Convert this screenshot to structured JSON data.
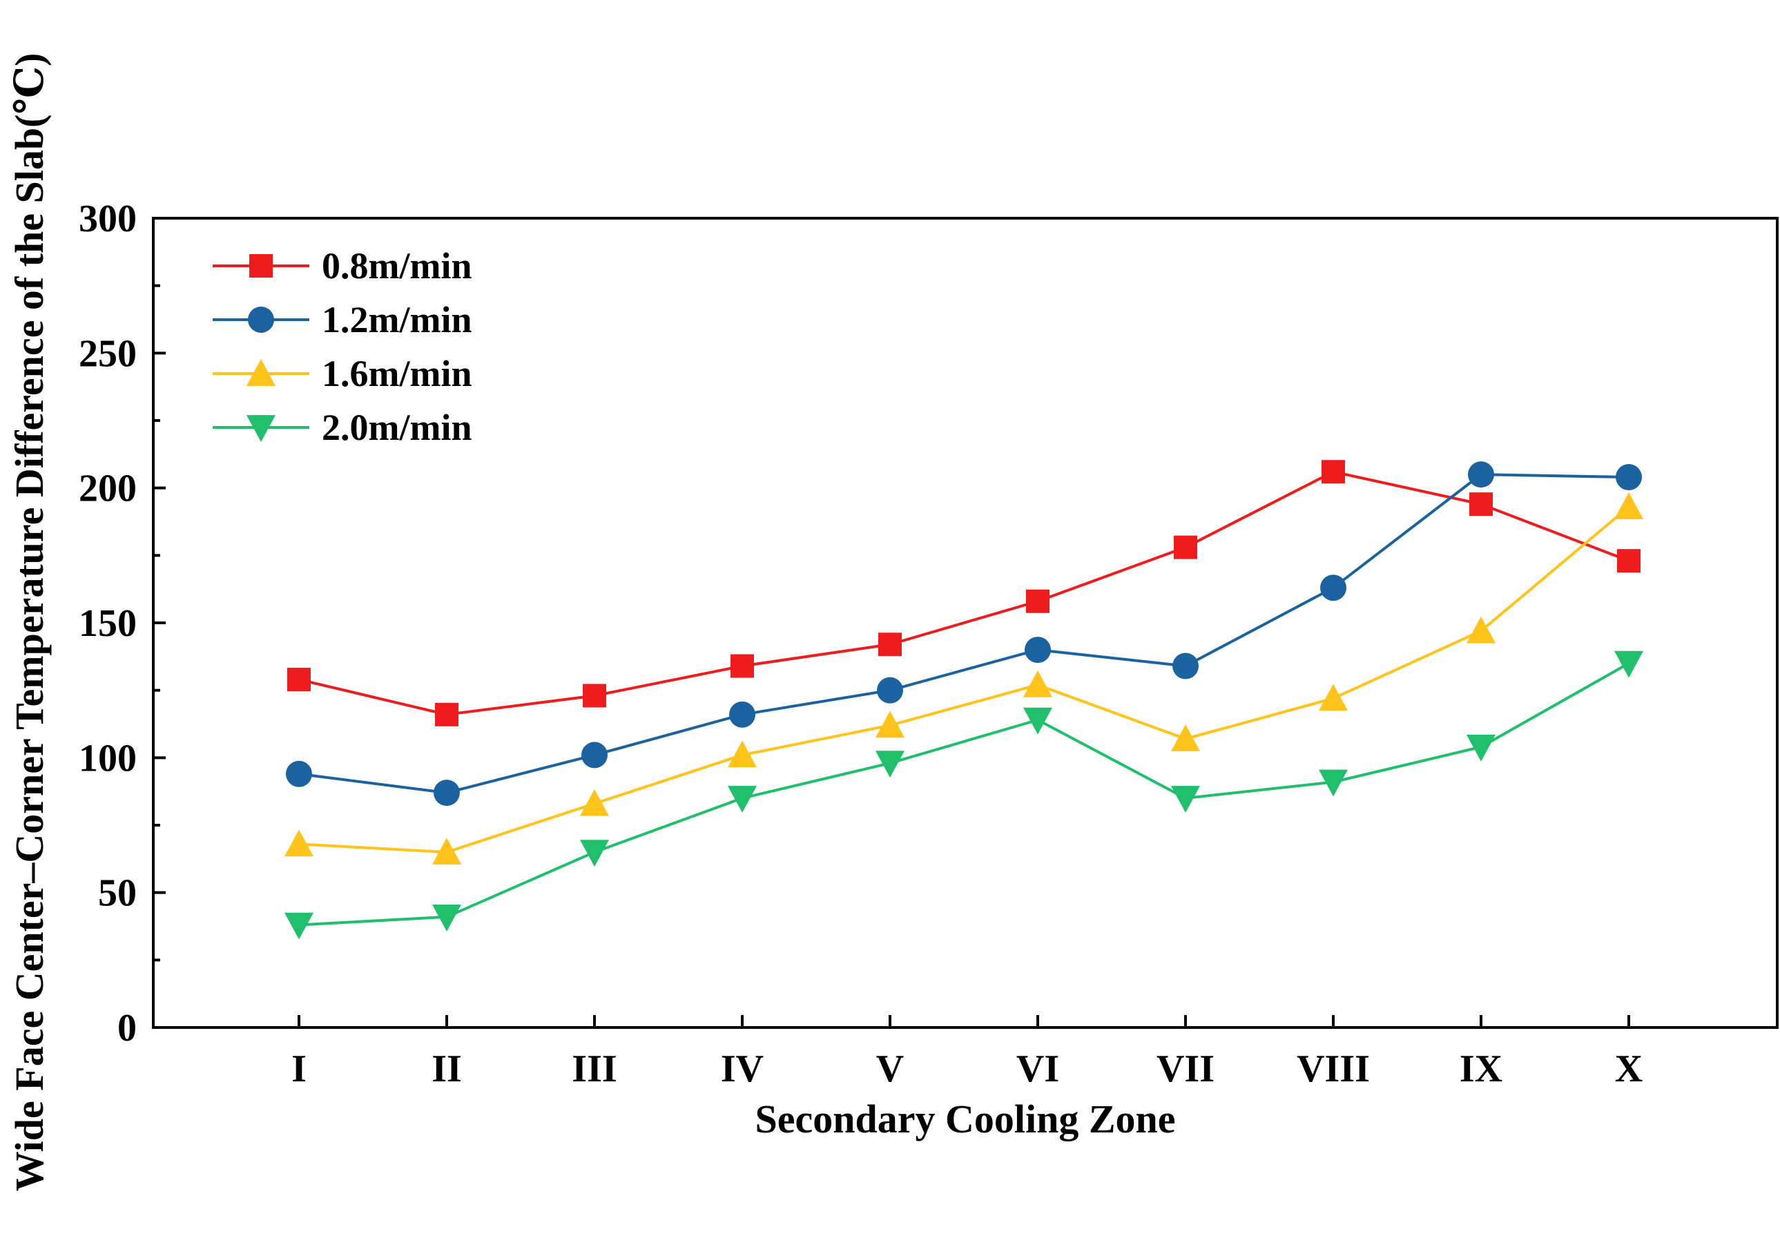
{
  "chart_data": {
    "type": "line",
    "xlabel": "Secondary Cooling Zone",
    "ylabel": "Wide Face Center–Corner Temperature Difference of the Slab(℃)",
    "categories": [
      "I",
      "II",
      "III",
      "IV",
      "V",
      "VI",
      "VII",
      "VIII",
      "IX",
      "X"
    ],
    "ylim": [
      0,
      300
    ],
    "yticks": [
      "0",
      "50",
      "100",
      "150",
      "200",
      "250",
      "300"
    ],
    "grid": false,
    "legend_position": "top-left",
    "series": [
      {
        "name": "0.8m/min",
        "color": "#ee1c1c",
        "marker": "square",
        "values": [
          129,
          116,
          123,
          134,
          142,
          158,
          178,
          206,
          194,
          173
        ]
      },
      {
        "name": "1.2m/min",
        "color": "#1a62a0",
        "marker": "circle",
        "values": [
          94,
          87,
          101,
          116,
          125,
          140,
          134,
          163,
          205,
          204
        ]
      },
      {
        "name": "1.6m/min",
        "color": "#ffc31a",
        "marker": "triangle-up",
        "values": [
          68,
          65,
          83,
          101,
          112,
          127,
          107,
          122,
          147,
          193
        ]
      },
      {
        "name": "2.0m/min",
        "color": "#1fbf6c",
        "marker": "triangle-down",
        "values": [
          38,
          41,
          65,
          85,
          98,
          114,
          85,
          91,
          104,
          135
        ]
      }
    ]
  }
}
